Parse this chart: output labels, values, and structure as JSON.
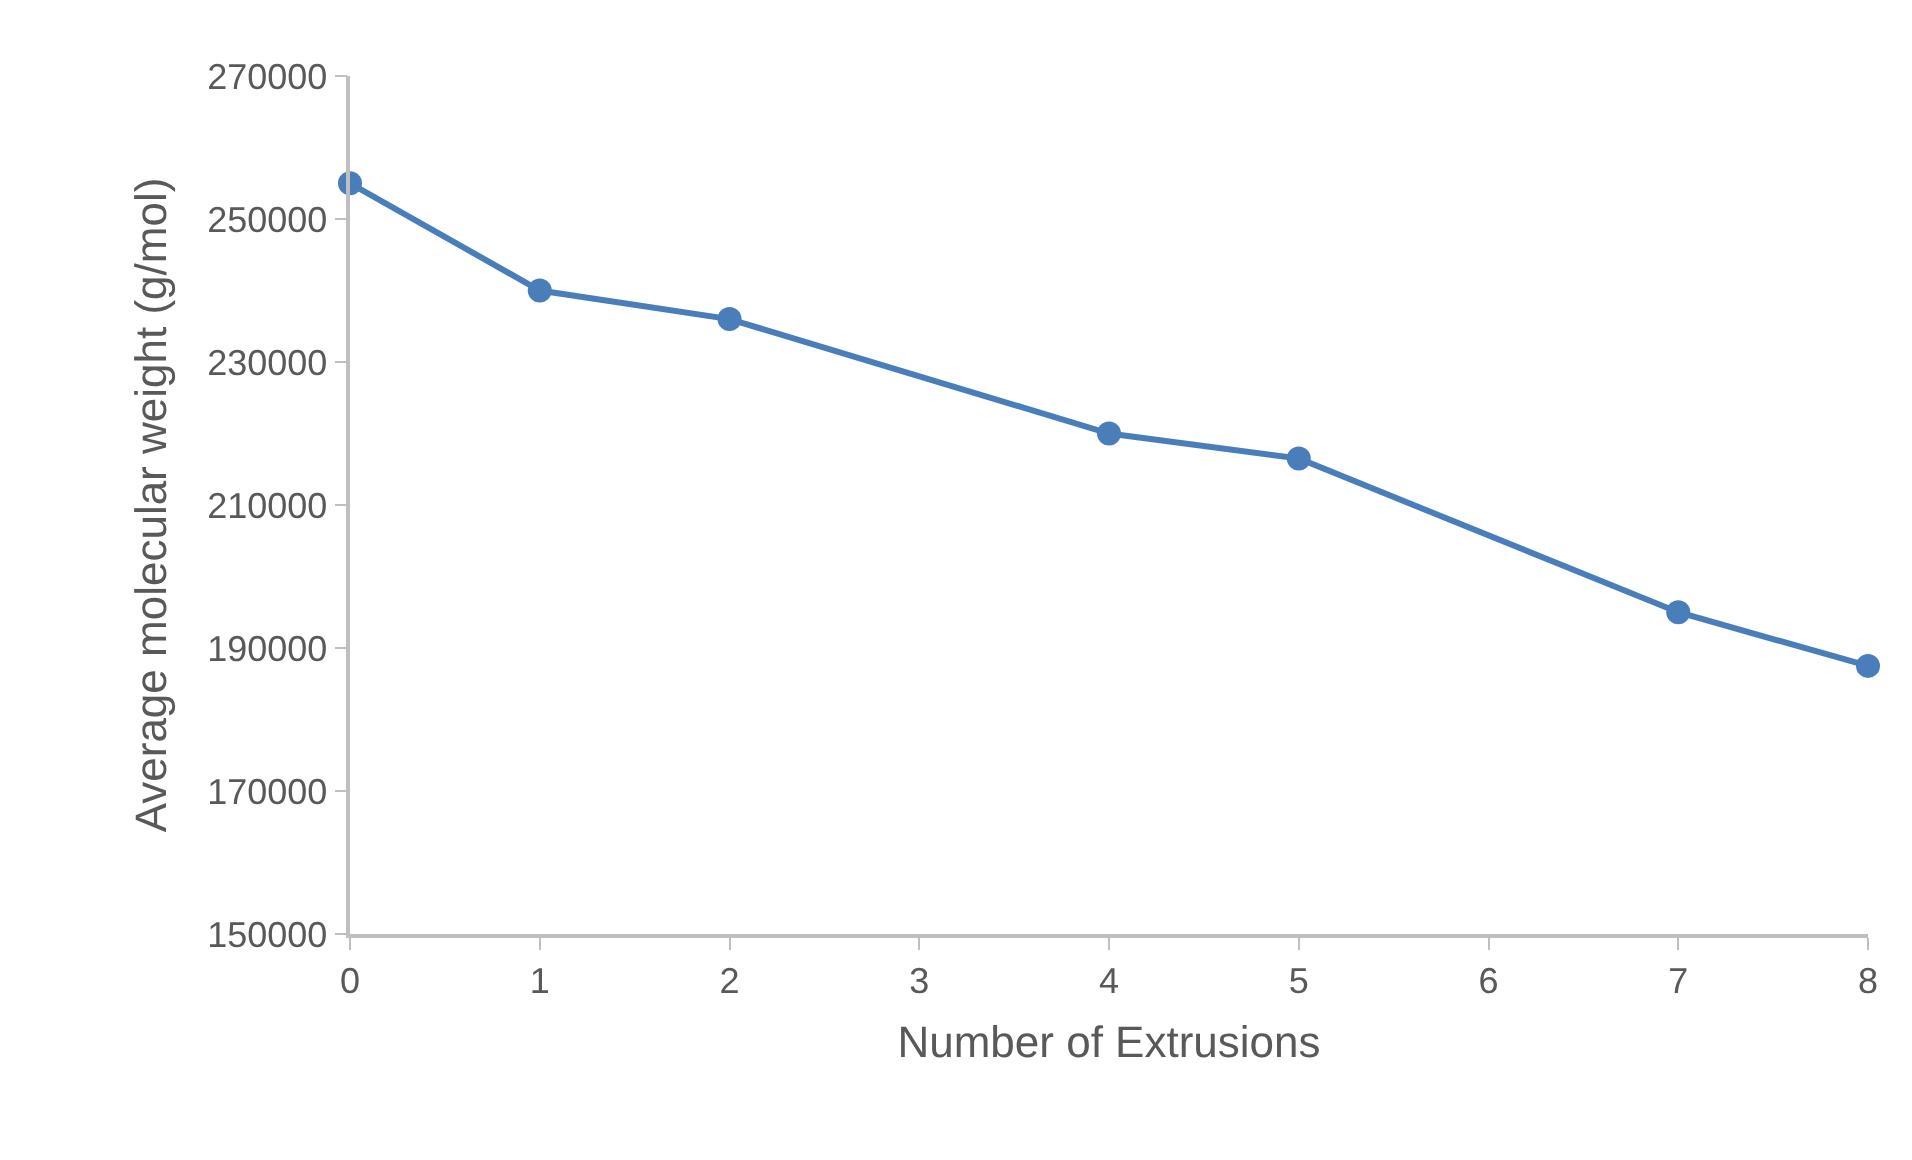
{
  "chart_data": {
    "type": "line",
    "xlabel": "Number of Extrusions",
    "ylabel": "Average molecular weight (g/mol)",
    "x": [
      0,
      1,
      2,
      4,
      5,
      7,
      8
    ],
    "series": [
      {
        "color": "#4a7ebb",
        "values": [
          255000,
          240000,
          236000,
          220000,
          216500,
          195000,
          187500
        ]
      }
    ],
    "xlim": [
      0,
      8
    ],
    "xticks": [
      0,
      1,
      2,
      3,
      4,
      5,
      6,
      7,
      8
    ],
    "ylim": [
      150000,
      270000
    ],
    "yticks": [
      150000,
      170000,
      190000,
      210000,
      230000,
      250000,
      270000
    ],
    "grid": false,
    "marker": "circle",
    "line_style": "solid"
  }
}
